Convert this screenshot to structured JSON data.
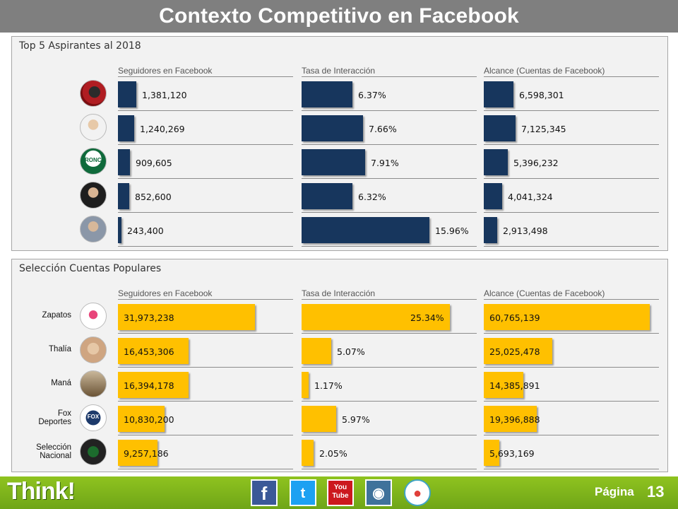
{
  "header": {
    "title": "Contexto Competitivo en Facebook"
  },
  "colors": {
    "navy": "#17365d",
    "gold": "#ffc000",
    "title_bg": "#7f7f7f",
    "footer": "#7ab51d"
  },
  "top5": {
    "title": "Top 5 Aspirantes al 2018",
    "columns": [
      "Seguidores en Facebook",
      "Tasa de Interacción",
      "Alcance  (Cuentas de Facebook)"
    ],
    "rows": [
      {
        "avatar": "candidate-1-photo",
        "followers": 1381120,
        "followers_label": "1,381,120",
        "rate": 6.37,
        "rate_label": "6.37%",
        "reach": 6598301,
        "reach_label": "6,598,301"
      },
      {
        "avatar": "candidate-2-photo",
        "followers": 1240269,
        "followers_label": "1,240,269",
        "rate": 7.66,
        "rate_label": "7.66%",
        "reach": 7125345,
        "reach_label": "7,125,345"
      },
      {
        "avatar": "bronco-logo",
        "logo_text": "BRONCO",
        "followers": 909605,
        "followers_label": "909,605",
        "rate": 7.91,
        "rate_label": "7.91%",
        "reach": 5396232,
        "reach_label": "5,396,232"
      },
      {
        "avatar": "candidate-4-photo",
        "followers": 852600,
        "followers_label": "852,600",
        "rate": 6.32,
        "rate_label": "6.32%",
        "reach": 4041324,
        "reach_label": "4,041,324"
      },
      {
        "avatar": "candidate-5-photo",
        "followers": 243400,
        "followers_label": "243,400",
        "rate": 15.96,
        "rate_label": "15.96%",
        "reach": 2913498,
        "reach_label": "2,913,498"
      }
    ]
  },
  "popular": {
    "title": "Selección Cuentas Populares",
    "columns": [
      "Seguidores en Facebook",
      "Tasa de Interacción",
      "Alcance  (Cuentas de Facebook)"
    ],
    "rows": [
      {
        "label": "Zapatos",
        "avatar": "zapatos-logo",
        "followers": 31973238,
        "followers_label": "31,973,238",
        "rate": 25.34,
        "rate_label": "25.34%",
        "reach": 60765139,
        "reach_label": "60,765,139"
      },
      {
        "label": "Thalía",
        "avatar": "thalia-photo",
        "followers": 16453306,
        "followers_label": "16,453,306",
        "rate": 5.07,
        "rate_label": "5.07%",
        "reach": 25025478,
        "reach_label": "25,025,478"
      },
      {
        "label": "Maná",
        "avatar": "mana-photo",
        "followers": 16394178,
        "followers_label": "16,394,178",
        "rate": 1.17,
        "rate_label": "1.17%",
        "reach": 14385891,
        "reach_label": "14,385,891"
      },
      {
        "label": "Fox\nDeportes",
        "avatar": "fox-deportes-logo",
        "logo_text": "FOX",
        "followers": 10830200,
        "followers_label": "10,830,200",
        "rate": 5.97,
        "rate_label": "5.97%",
        "reach": 19396888,
        "reach_label": "19,396,888"
      },
      {
        "label": "Selección\nNacional",
        "avatar": "seleccion-nacional-logo",
        "followers": 9257186,
        "followers_label": "9,257,186",
        "rate": 2.05,
        "rate_label": "2.05%",
        "reach": 5693169,
        "reach_label": "5,693,169"
      }
    ]
  },
  "footer": {
    "logo": "Think!",
    "social": [
      {
        "name": "facebook-icon",
        "glyph": "f",
        "color": "#3b5998"
      },
      {
        "name": "twitter-icon",
        "glyph": "t",
        "color": "#1da1f2"
      },
      {
        "name": "youtube-icon",
        "glyph": "You\nTube",
        "color": "#cc181e"
      },
      {
        "name": "instagram-icon",
        "glyph": "◉",
        "color": "#3f729b"
      },
      {
        "name": "periscope-icon",
        "glyph": "●",
        "color": "#40a4c4"
      }
    ],
    "page_label": "Página",
    "page_number": "13"
  }
}
